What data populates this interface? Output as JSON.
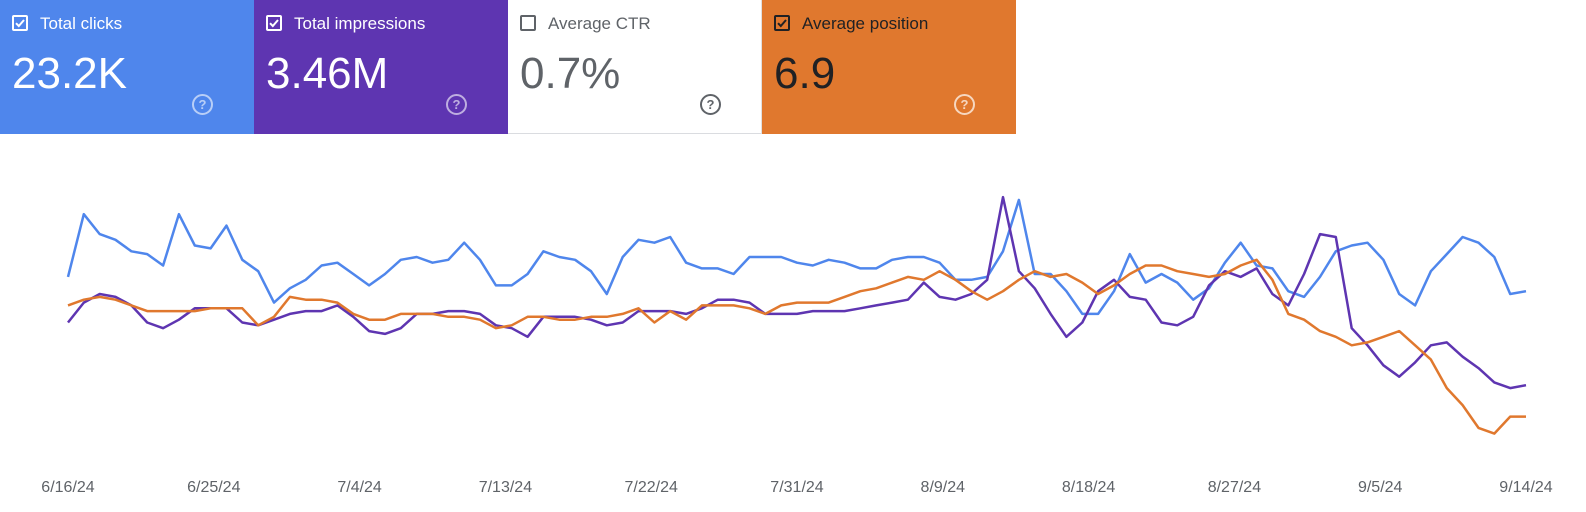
{
  "metrics": [
    {
      "label": "Total clicks",
      "value": "23.2K",
      "checked": true,
      "bg": "#4f86ec",
      "fg": "#ffffff",
      "help_color": "rgba(255,255,255,0.6)"
    },
    {
      "label": "Total impressions",
      "value": "3.46M",
      "checked": true,
      "bg": "#5e35b1",
      "fg": "#ffffff",
      "help_color": "rgba(255,255,255,0.6)"
    },
    {
      "label": "Average CTR",
      "value": "0.7%",
      "checked": false,
      "bg": "#ffffff",
      "fg": "#5f6368",
      "help_color": "#5f6368"
    },
    {
      "label": "Average position",
      "value": "6.9",
      "checked": true,
      "bg": "#e0782e",
      "fg": "#202124",
      "help_color": "rgba(255,255,255,0.7)"
    }
  ],
  "help_glyph": "?",
  "chart_data": {
    "type": "line",
    "x_labels": [
      "6/16/24",
      "6/25/24",
      "7/4/24",
      "7/13/24",
      "7/22/24",
      "7/31/24",
      "8/9/24",
      "8/18/24",
      "8/27/24",
      "9/5/24",
      "9/14/24"
    ],
    "x_start": "6/16/24",
    "x_end": "9/14/24",
    "grid": false,
    "y_axis_visible": false,
    "y_scale": "relative (no axis shown)",
    "series": [
      {
        "name": "Total clicks",
        "color": "#4f86ec",
        "values": [
          66,
          88,
          81,
          79,
          75,
          74,
          70,
          88,
          77,
          76,
          84,
          72,
          68,
          57,
          62,
          65,
          70,
          71,
          67,
          63,
          67,
          72,
          73,
          71,
          72,
          78,
          72,
          63,
          63,
          67,
          75,
          73,
          72,
          68,
          60,
          73,
          79,
          78,
          80,
          71,
          69,
          69,
          67,
          73,
          73,
          73,
          71,
          70,
          72,
          71,
          69,
          69,
          72,
          73,
          73,
          71,
          65,
          65,
          66,
          75,
          93,
          67,
          67,
          61,
          53,
          53,
          61,
          74,
          64,
          67,
          64,
          58,
          62,
          71,
          78,
          70,
          69,
          61,
          59,
          66,
          75,
          77,
          78,
          72,
          60,
          56,
          68,
          74,
          80,
          78,
          73,
          60,
          61
        ]
      },
      {
        "name": "Total impressions",
        "color": "#5e35b1",
        "values": [
          50,
          57,
          60,
          59,
          56,
          50,
          48,
          51,
          55,
          55,
          55,
          50,
          49,
          51,
          53,
          54,
          54,
          56,
          52,
          47,
          46,
          48,
          53,
          53,
          54,
          54,
          53,
          49,
          48,
          45,
          52,
          52,
          52,
          51,
          49,
          50,
          54,
          54,
          54,
          53,
          55,
          58,
          58,
          57,
          53,
          53,
          53,
          54,
          54,
          54,
          55,
          56,
          57,
          58,
          64,
          59,
          58,
          60,
          65,
          94,
          68,
          62,
          53,
          45,
          50,
          61,
          65,
          59,
          58,
          50,
          49,
          52,
          63,
          68,
          66,
          69,
          60,
          56,
          67,
          81,
          80,
          48,
          42,
          35,
          31,
          36,
          42,
          43,
          38,
          34,
          29,
          27,
          28
        ]
      },
      {
        "name": "Average position",
        "color": "#e0782e",
        "values": [
          56,
          58,
          59,
          58,
          56,
          54,
          54,
          54,
          54,
          55,
          55,
          55,
          49,
          52,
          59,
          58,
          58,
          57,
          53,
          51,
          51,
          53,
          53,
          53,
          52,
          52,
          51,
          48,
          49,
          52,
          52,
          51,
          51,
          52,
          52,
          53,
          55,
          50,
          54,
          51,
          56,
          56,
          56,
          55,
          53,
          56,
          57,
          57,
          57,
          59,
          61,
          62,
          64,
          66,
          65,
          68,
          65,
          61,
          58,
          61,
          65,
          68,
          66,
          67,
          64,
          60,
          63,
          67,
          70,
          70,
          68,
          67,
          66,
          67,
          70,
          72,
          65,
          53,
          51,
          47,
          45,
          42,
          43,
          45,
          47,
          42,
          37,
          27,
          21,
          13,
          11,
          17,
          17
        ]
      }
    ]
  }
}
